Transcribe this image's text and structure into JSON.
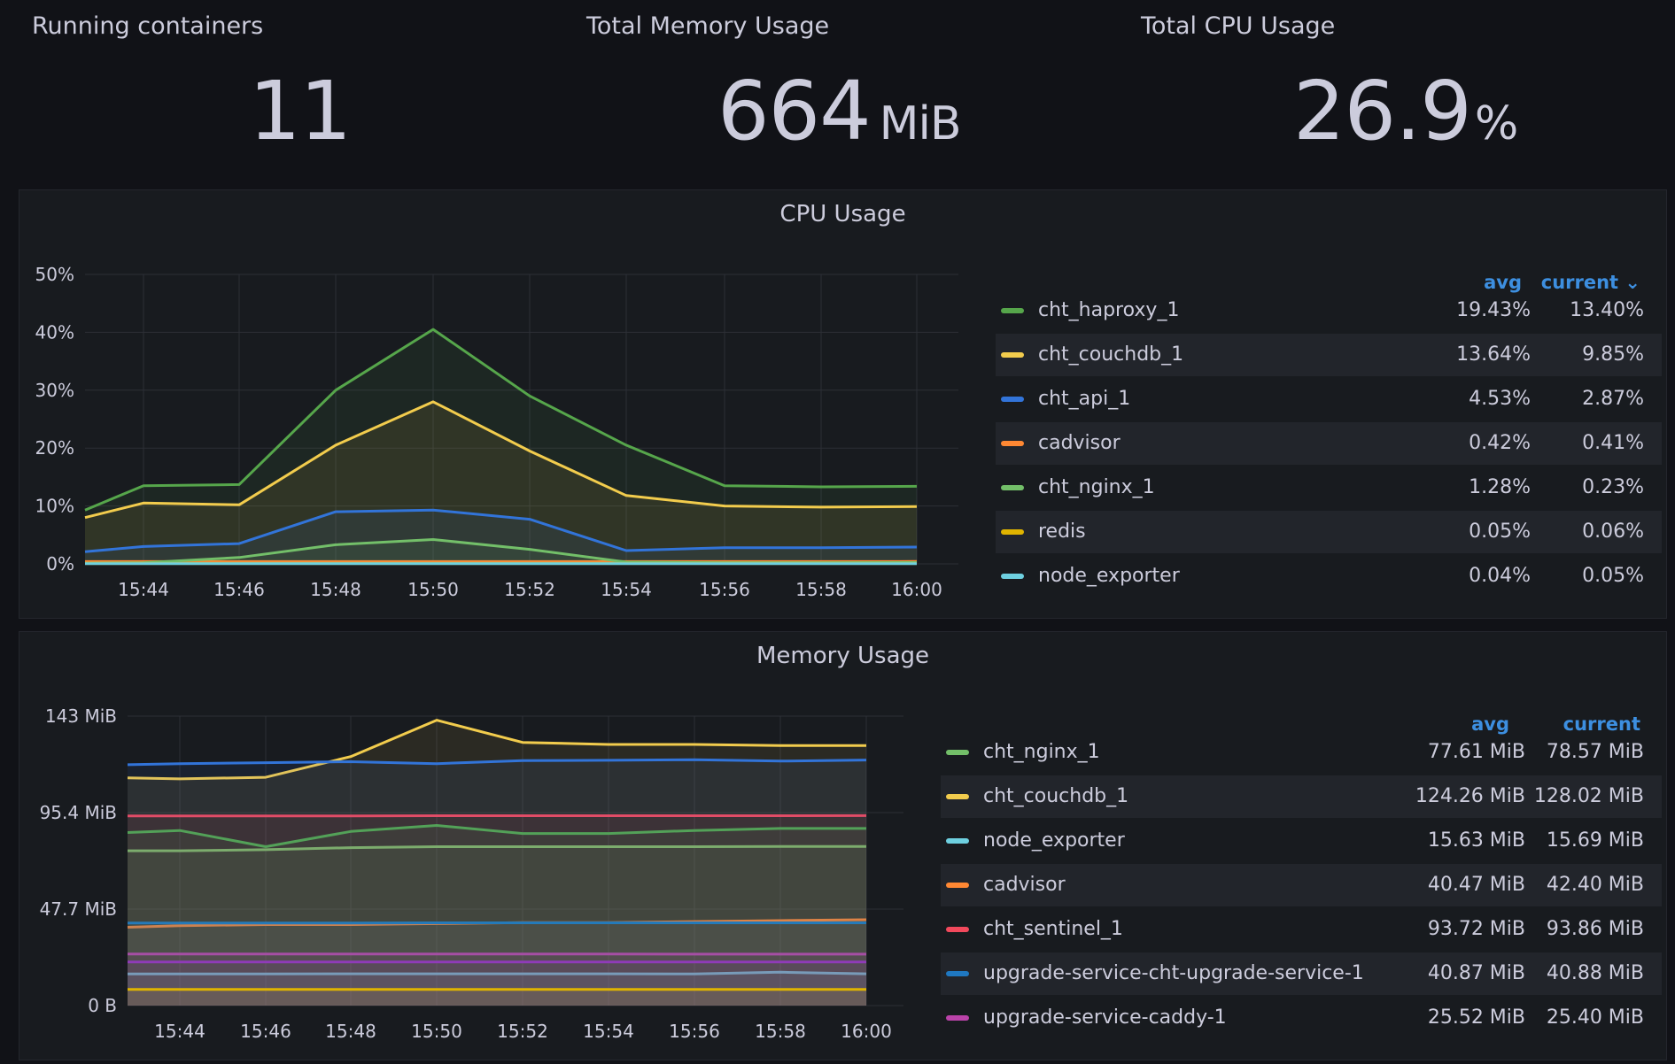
{
  "stats": {
    "running": {
      "title": "Running containers",
      "value": "11",
      "unit": ""
    },
    "memory": {
      "title": "Total Memory Usage",
      "value": "664",
      "unit": "MiB"
    },
    "cpu": {
      "title": "Total CPU Usage",
      "value": "26.9",
      "unit": "%"
    }
  },
  "cpu_panel": {
    "title": "CPU Usage",
    "legend": {
      "avg_header": "avg",
      "current_header": "current ⌄",
      "rows": [
        {
          "name": "cht_haproxy_1",
          "color": "#56a64b",
          "avg": "19.43%",
          "current": "13.40%"
        },
        {
          "name": "cht_couchdb_1",
          "color": "#f2cc4d",
          "avg": "13.64%",
          "current": "9.85%"
        },
        {
          "name": "cht_api_1",
          "color": "#3274d9",
          "avg": "4.53%",
          "current": "2.87%"
        },
        {
          "name": "cadvisor",
          "color": "#ff8833",
          "avg": "0.42%",
          "current": "0.41%"
        },
        {
          "name": "cht_nginx_1",
          "color": "#73bf69",
          "avg": "1.28%",
          "current": "0.23%"
        },
        {
          "name": "redis",
          "color": "#e0b400",
          "avg": "0.05%",
          "current": "0.06%"
        },
        {
          "name": "node_exporter",
          "color": "#6ed0e0",
          "avg": "0.04%",
          "current": "0.05%"
        }
      ]
    }
  },
  "mem_panel": {
    "title": "Memory Usage",
    "legend": {
      "avg_header": "avg",
      "current_header": "current",
      "rows": [
        {
          "name": "cht_nginx_1",
          "color": "#73bf69",
          "avg": "77.61 MiB",
          "current": "78.57 MiB"
        },
        {
          "name": "cht_couchdb_1",
          "color": "#f2cc4d",
          "avg": "124.26 MiB",
          "current": "128.02 MiB"
        },
        {
          "name": "node_exporter",
          "color": "#6ed0e0",
          "avg": "15.63 MiB",
          "current": "15.69 MiB"
        },
        {
          "name": "cadvisor",
          "color": "#ff8833",
          "avg": "40.47 MiB",
          "current": "42.40 MiB"
        },
        {
          "name": "cht_sentinel_1",
          "color": "#f2495c",
          "avg": "93.72 MiB",
          "current": "93.86 MiB"
        },
        {
          "name": "upgrade-service-cht-upgrade-service-1",
          "color": "#1f78c1",
          "avg": "40.87 MiB",
          "current": "40.88 MiB"
        },
        {
          "name": "upgrade-service-caddy-1",
          "color": "#ba43a9",
          "avg": "25.52 MiB",
          "current": "25.40 MiB"
        }
      ]
    }
  },
  "chart_data": [
    {
      "type": "line",
      "x": [
        "15:43",
        "15:44",
        "15:46",
        "15:48",
        "15:50",
        "15:52",
        "15:54",
        "15:56",
        "15:58",
        "16:00"
      ],
      "xticks": [
        "15:44",
        "15:46",
        "15:48",
        "15:50",
        "15:52",
        "15:54",
        "15:56",
        "15:58",
        "16:00"
      ],
      "yticks": [
        "0%",
        "10%",
        "20%",
        "30%",
        "40%",
        "50%"
      ],
      "ylim": [
        0,
        50
      ],
      "grid": true,
      "legend_position": "right",
      "series": [
        {
          "name": "cht_haproxy_1",
          "color": "#56a64b",
          "values": [
            9.3,
            13.5,
            13.7,
            30,
            40.5,
            29,
            20.5,
            13.5,
            13.3,
            13.4
          ]
        },
        {
          "name": "cht_couchdb_1",
          "color": "#f2cc4d",
          "values": [
            8,
            10.5,
            10.2,
            20.5,
            28,
            19.5,
            11.8,
            10,
            9.8,
            9.9
          ]
        },
        {
          "name": "cht_api_1",
          "color": "#3274d9",
          "values": [
            2.1,
            3,
            3.5,
            9,
            9.3,
            7.7,
            2.3,
            2.8,
            2.8,
            2.9
          ]
        },
        {
          "name": "cadvisor",
          "color": "#ff8833",
          "values": [
            0.4,
            0.4,
            0.4,
            0.4,
            0.4,
            0.4,
            0.4,
            0.4,
            0.4,
            0.41
          ]
        },
        {
          "name": "cht_nginx_1",
          "color": "#73bf69",
          "values": [
            0.1,
            0.2,
            1.1,
            3.3,
            4.2,
            2.5,
            0.3,
            0.2,
            0.2,
            0.23
          ]
        },
        {
          "name": "redis",
          "color": "#e0b400",
          "values": [
            0.06,
            0.06,
            0.06,
            0.06,
            0.06,
            0.06,
            0.06,
            0.06,
            0.06,
            0.06
          ]
        },
        {
          "name": "node_exporter",
          "color": "#6ed0e0",
          "values": [
            0.04,
            0.04,
            0.04,
            0.04,
            0.05,
            0.05,
            0.05,
            0.05,
            0.05,
            0.05
          ]
        }
      ]
    },
    {
      "type": "line",
      "x": [
        "15:43",
        "15:44",
        "15:46",
        "15:48",
        "15:50",
        "15:52",
        "15:54",
        "15:56",
        "15:58",
        "16:00"
      ],
      "xticks": [
        "15:44",
        "15:46",
        "15:48",
        "15:50",
        "15:52",
        "15:54",
        "15:56",
        "15:58",
        "16:00"
      ],
      "yticks": [
        "0 B",
        "47.7 MiB",
        "95.4 MiB",
        "143 MiB"
      ],
      "ylim": [
        0,
        143
      ],
      "grid": true,
      "legend_position": "right",
      "series": [
        {
          "name": "cht_nginx_1",
          "color": "#73bf69",
          "values": [
            76.5,
            76.5,
            77,
            78,
            78.5,
            78.5,
            78.5,
            78.5,
            78.6,
            78.6
          ]
        },
        {
          "name": "cht_couchdb_1",
          "color": "#f2cc4d",
          "values": [
            112.5,
            112,
            112.8,
            123,
            141,
            130,
            129,
            129,
            128.5,
            128.5
          ]
        },
        {
          "name": "node_exporter",
          "color": "#6ed0e0",
          "values": [
            15.6,
            15.6,
            15.6,
            15.7,
            15.7,
            15.7,
            15.7,
            15.6,
            16.5,
            15.7
          ]
        },
        {
          "name": "cadvisor",
          "color": "#ff8833",
          "values": [
            38.7,
            39.5,
            40,
            40,
            40.5,
            41,
            41,
            41.5,
            42,
            42.4
          ]
        },
        {
          "name": "cht_sentinel_1",
          "color": "#f2495c",
          "values": [
            93.7,
            93.7,
            93.7,
            93.7,
            93.8,
            93.8,
            93.8,
            93.8,
            93.8,
            93.86
          ]
        },
        {
          "name": "upgrade-service-cht-upgrade-service-1",
          "color": "#1f78c1",
          "values": [
            40.8,
            40.8,
            40.8,
            40.8,
            40.9,
            40.9,
            40.9,
            40.9,
            40.9,
            40.88
          ]
        },
        {
          "name": "upgrade-service-caddy-1",
          "color": "#ba43a9",
          "values": [
            25.5,
            25.5,
            25.5,
            25.5,
            25.5,
            25.5,
            25.5,
            25.4,
            25.4,
            25.4
          ]
        },
        {
          "name": "",
          "color": "#56a64b",
          "values": [
            85.5,
            86.5,
            78.5,
            86,
            89,
            85,
            85,
            86.5,
            87.5,
            87.5
          ]
        },
        {
          "name": "",
          "color": "#3274d9",
          "values": [
            119,
            119.5,
            120,
            120.5,
            119.5,
            121,
            121.2,
            121.5,
            120.8,
            121.3
          ]
        },
        {
          "name": "",
          "color": "#8f3bb8",
          "values": [
            21.5,
            21.5,
            21.5,
            21.5,
            21.5,
            21.5,
            21.5,
            21.5,
            21.5,
            21.5
          ]
        },
        {
          "name": "",
          "color": "#e0b400",
          "values": [
            8,
            8,
            8,
            8,
            8,
            8,
            8,
            8,
            8,
            8
          ]
        }
      ]
    }
  ]
}
